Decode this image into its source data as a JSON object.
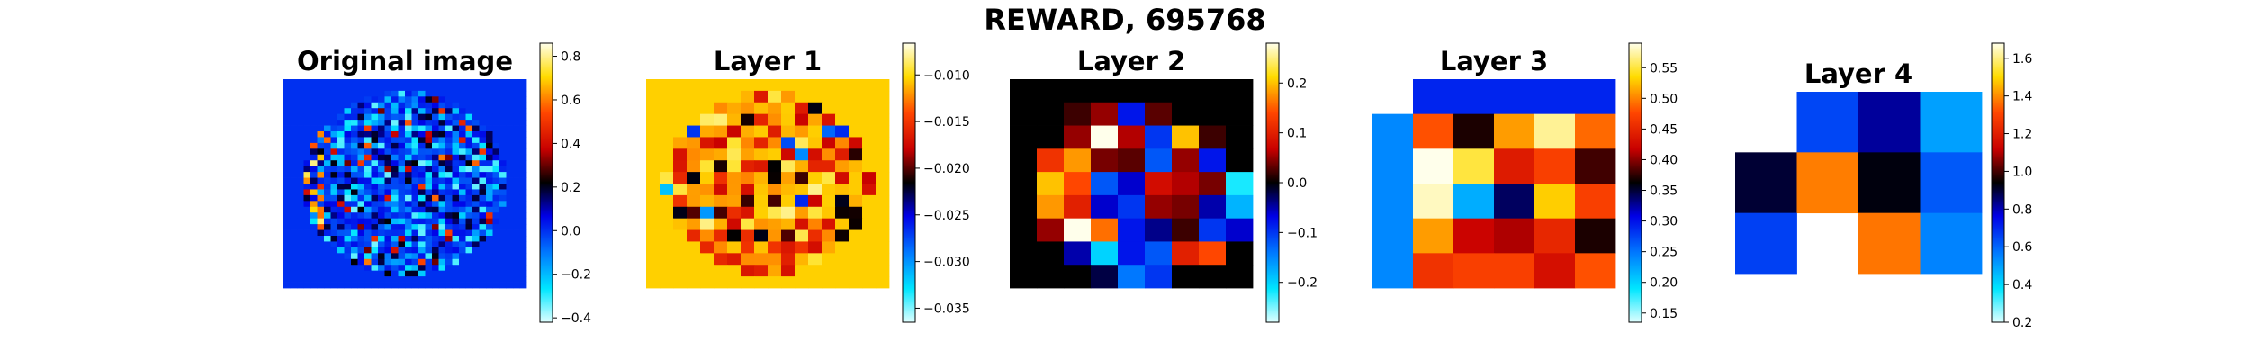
{
  "figure": {
    "suptitle": "REWARD, 695768"
  },
  "chart_data": [
    {
      "type": "heatmap",
      "title": "Original image",
      "rows": 36,
      "cols": 36,
      "grid": false,
      "colormap": "jet-black-center",
      "colorbar": {
        "min": -0.42,
        "max": 0.86,
        "ticks": [
          -0.4,
          -0.2,
          0.0,
          0.2,
          0.4,
          0.6,
          0.8
        ],
        "tick_labels": [
          "−0.4",
          "−0.2",
          "0.0",
          "0.2",
          "0.4",
          "0.6",
          "0.8"
        ]
      },
      "background_value": 0.0,
      "description": "brain-shaped region of low mixed values, hot spots on left edge",
      "seed": 11
    },
    {
      "type": "heatmap",
      "title": "Layer 1",
      "rows": 18,
      "cols": 18,
      "grid": false,
      "colormap": "jet-black-center",
      "colorbar": {
        "min": -0.0365,
        "max": -0.0066,
        "ticks": [
          -0.035,
          -0.03,
          -0.025,
          -0.02,
          -0.015,
          -0.01
        ],
        "tick_labels": [
          "−0.035",
          "−0.030",
          "−0.025",
          "−0.020",
          "−0.015",
          "−0.010"
        ]
      },
      "background_value": -0.0105,
      "seed": 23
    },
    {
      "type": "heatmap",
      "title": "Layer 2",
      "rows": 9,
      "cols": 9,
      "grid": false,
      "colormap": "jet-black-center",
      "colorbar": {
        "min": -0.28,
        "max": 0.28,
        "ticks": [
          -0.2,
          -0.1,
          0.0,
          0.1,
          0.2
        ],
        "tick_labels": [
          "−0.2",
          "−0.1",
          "0.0",
          "0.1",
          "0.2"
        ]
      },
      "values": [
        [
          0.0,
          0.0,
          0.0,
          0.0,
          0.0,
          0.0,
          0.0,
          0.0,
          0.0
        ],
        [
          0.0,
          0.0,
          0.02,
          0.05,
          -0.08,
          0.03,
          0.0,
          0.0,
          0.0
        ],
        [
          0.0,
          0.0,
          0.05,
          0.28,
          0.06,
          -0.1,
          0.2,
          0.02,
          0.0
        ],
        [
          0.0,
          0.12,
          0.18,
          0.04,
          0.03,
          -0.12,
          0.05,
          -0.08,
          0.0
        ],
        [
          0.0,
          0.2,
          0.14,
          -0.12,
          -0.06,
          0.08,
          0.06,
          0.04,
          -0.22
        ],
        [
          0.0,
          0.18,
          0.1,
          -0.06,
          -0.1,
          0.05,
          0.04,
          -0.05,
          -0.18
        ],
        [
          0.0,
          0.05,
          0.28,
          0.16,
          -0.08,
          -0.04,
          0.02,
          -0.1,
          -0.06
        ],
        [
          0.0,
          0.0,
          -0.05,
          -0.2,
          -0.08,
          -0.12,
          0.1,
          0.14,
          0.0
        ],
        [
          0.0,
          0.0,
          0.0,
          -0.02,
          -0.14,
          -0.1,
          0.0,
          0.0,
          0.0
        ]
      ]
    },
    {
      "type": "heatmap",
      "title": "Layer 3",
      "rows": 6,
      "cols": 6,
      "grid": false,
      "colormap": "jet-black-center",
      "colorbar": {
        "min": 0.135,
        "max": 0.59,
        "ticks": [
          0.15,
          0.2,
          0.25,
          0.3,
          0.35,
          0.4,
          0.45,
          0.5,
          0.55
        ],
        "tick_labels": [
          "0.15",
          "0.20",
          "0.25",
          "0.30",
          "0.35",
          "0.40",
          "0.45",
          "0.50",
          "0.55"
        ]
      },
      "values": [
        [
          null,
          0.29,
          0.29,
          0.29,
          0.29,
          0.29
        ],
        [
          0.24,
          0.48,
          0.37,
          0.51,
          0.57,
          0.49
        ],
        [
          0.24,
          0.59,
          0.55,
          0.44,
          0.47,
          0.38
        ],
        [
          0.24,
          0.58,
          0.22,
          0.34,
          0.53,
          0.47
        ],
        [
          0.24,
          0.51,
          0.42,
          0.41,
          0.45,
          0.37
        ],
        [
          0.24,
          0.46,
          0.47,
          0.47,
          0.43,
          0.48
        ]
      ]
    },
    {
      "type": "heatmap",
      "title": "Layer 4",
      "rows": 3,
      "cols": 4,
      "grid": false,
      "colormap": "jet-black-center",
      "colorbar": {
        "min": 0.2,
        "max": 1.68,
        "ticks": [
          0.2,
          0.4,
          0.6,
          0.8,
          1.0,
          1.2,
          1.4,
          1.6
        ],
        "tick_labels": [
          "0.2",
          "0.4",
          "0.6",
          "0.8",
          "1.0",
          "1.2",
          "1.4",
          "1.6"
        ]
      },
      "values": [
        [
          null,
          0.65,
          0.82,
          0.5
        ],
        [
          0.9,
          1.38,
          0.93,
          0.62
        ],
        [
          0.66,
          null,
          1.37,
          0.55
        ]
      ]
    }
  ]
}
